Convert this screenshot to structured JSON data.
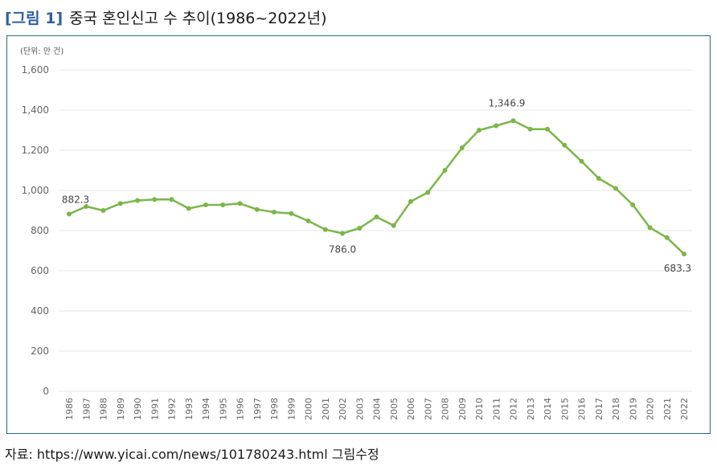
{
  "figure": {
    "label": "[그림 1]",
    "title": "중국 혼인신고 수 추이(1986~2022년)"
  },
  "source": "자료: https://www.yicai.com/news/101780243.html 그림수정",
  "chart_data": {
    "type": "line",
    "unit": "(단위: 만 건)",
    "ylim": [
      0,
      1600
    ],
    "yticks": [
      "0",
      "200",
      "400",
      "600",
      "800",
      "1,000",
      "1,200",
      "1,400",
      "1,600"
    ],
    "grid": "horizontal",
    "categories": [
      "1986",
      "1987",
      "1988",
      "1989",
      "1990",
      "1991",
      "1992",
      "1993",
      "1994",
      "1995",
      "1996",
      "1997",
      "1998",
      "1999",
      "2000",
      "2001",
      "2002",
      "2003",
      "2004",
      "2005",
      "2006",
      "2007",
      "2008",
      "2009",
      "2010",
      "2011",
      "2012",
      "2013",
      "2014",
      "2015",
      "2016",
      "2017",
      "2018",
      "2019",
      "2020",
      "2021",
      "2022"
    ],
    "series": [
      {
        "color": "#7ab648",
        "values": [
          882.3,
          920,
          900,
          935,
          950,
          955,
          955,
          910,
          928,
          928,
          935,
          905,
          892,
          885,
          848,
          805,
          786.0,
          812,
          868,
          825,
          945,
          990,
          1100,
          1212,
          1300,
          1322,
          1346.9,
          1305,
          1305,
          1225,
          1145,
          1060,
          1010,
          928,
          815,
          765,
          683.3
        ]
      }
    ],
    "annotations": [
      {
        "index": 0,
        "text": "882.3"
      },
      {
        "index": 16,
        "text": "786.0"
      },
      {
        "index": 26,
        "text": "1,346.9"
      },
      {
        "index": 36,
        "text": "683.3"
      }
    ]
  }
}
